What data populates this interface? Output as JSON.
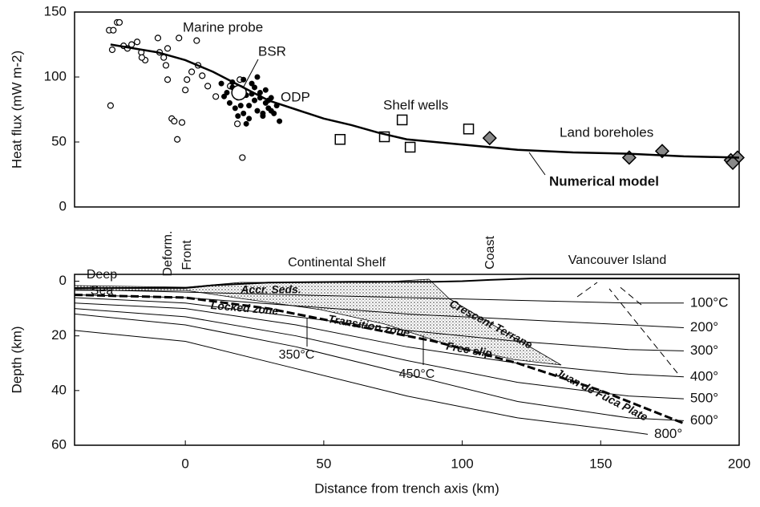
{
  "chart_data": [
    {
      "type": "scatter",
      "ylabel": "Heat flux (mW m-2)",
      "xlim": [
        -40,
        200
      ],
      "ylim": [
        0,
        150
      ],
      "yticks": [
        0,
        50,
        100,
        150
      ],
      "series": [
        {
          "name": "Marine probe",
          "marker": "circle",
          "color": "#000000",
          "x": [
            -27.5,
            -24.6,
            -23.8,
            -26,
            -26.4,
            -27,
            -22.3,
            -20.9,
            -19.4,
            -17.4,
            -15.9,
            -14.5,
            -15.7,
            -9.9,
            -9.3,
            -7.8,
            -6.4,
            -7,
            -6.4,
            -4.9,
            -4,
            -2.9,
            -1.2,
            -2.3,
            0.6,
            0,
            2.3,
            4.1,
            4.6,
            6.1,
            8.1,
            18.8,
            19.7,
            20.6,
            16.2,
            11
          ],
          "values": [
            136,
            142,
            142,
            136,
            121,
            78,
            124,
            122,
            125,
            127,
            119,
            113,
            115,
            130,
            119,
            115,
            122,
            109,
            98,
            68,
            66,
            52,
            65,
            130,
            98,
            90,
            104,
            128,
            109,
            101,
            93,
            64,
            98,
            38,
            93,
            85
          ]
        },
        {
          "name": "BSR",
          "marker": "dot",
          "color": "#000000",
          "x": [
            15,
            16,
            17,
            18,
            19,
            20,
            21,
            22,
            23,
            24,
            25,
            26,
            27,
            28,
            29,
            30,
            31,
            32,
            33,
            34,
            17,
            19,
            21,
            23,
            25,
            27,
            29,
            31,
            22,
            26,
            24,
            20,
            28,
            30,
            13,
            14
          ],
          "values": [
            88,
            80,
            92,
            76,
            84,
            90,
            72,
            86,
            78,
            95,
            82,
            74,
            88,
            70,
            80,
            76,
            84,
            72,
            78,
            66,
            96,
            70,
            98,
            68,
            92,
            84,
            90,
            74,
            64,
            100,
            87,
            78,
            72,
            82,
            95,
            85
          ]
        },
        {
          "name": "ODP",
          "marker": "big",
          "color": "#000000",
          "x": [
            19.4
          ],
          "values": [
            88
          ]
        },
        {
          "name": "Shelf wells",
          "marker": "square",
          "color": "#000000",
          "x": [
            55.9,
            71.9,
            78.3,
            81.2,
            102.3
          ],
          "values": [
            52,
            54,
            67,
            46,
            60
          ]
        },
        {
          "name": "Land boreholes",
          "marker": "diamond",
          "color": "#000000",
          "x": [
            109.9,
            160.3,
            172.2,
            197,
            199.4,
            197.7
          ],
          "values": [
            53,
            38,
            43,
            36,
            38,
            34
          ]
        },
        {
          "name": "Numerical model",
          "marker": "line",
          "color": "#000000",
          "x": [
            -27,
            -10,
            0,
            10,
            20,
            30,
            40,
            50,
            60,
            70,
            80,
            100,
            120,
            140,
            160,
            180,
            200
          ],
          "values": [
            125,
            119,
            113,
            104,
            93,
            82,
            75,
            68,
            63,
            57,
            52,
            48,
            44,
            42,
            41,
            39,
            38
          ]
        }
      ]
    },
    {
      "type": "section",
      "xlabel": "Distance from trench axis (km)",
      "ylabel": "Depth (km)",
      "xlim": [
        -40,
        200
      ],
      "ylim": [
        60,
        -2.5
      ],
      "xticks": [
        0,
        50,
        100,
        150,
        200
      ],
      "yticks": [
        0,
        20,
        40,
        60
      ],
      "surface": {
        "x": [
          -40,
          0,
          10,
          30,
          60,
          90,
          100,
          110,
          125,
          150,
          200
        ],
        "values": [
          2.5,
          2.5,
          1.5,
          0.5,
          0.2,
          0.2,
          0,
          -0.5,
          -1,
          -1,
          -1
        ]
      },
      "slab": {
        "x": [
          -40,
          0,
          30,
          60,
          90,
          120,
          150,
          180
        ],
        "values": [
          5,
          6,
          10,
          16,
          22,
          30,
          40,
          52
        ]
      },
      "series": [
        {
          "name": "100°C",
          "x": [
            -40,
            0,
            40,
            80,
            120,
            160,
            180
          ],
          "values": [
            3,
            4,
            5,
            6,
            7,
            8,
            8
          ]
        },
        {
          "name": "200°",
          "x": [
            -40,
            0,
            40,
            80,
            120,
            160,
            180
          ],
          "values": [
            5,
            6,
            9,
            12,
            14,
            16,
            17
          ]
        },
        {
          "name": "300°",
          "x": [
            -40,
            0,
            40,
            80,
            120,
            160,
            180
          ],
          "values": [
            6,
            8,
            13,
            18,
            22,
            25,
            25.5
          ]
        },
        {
          "name": "400°",
          "x": [
            -40,
            0,
            40,
            80,
            120,
            160,
            180
          ],
          "values": [
            8,
            10,
            16,
            24,
            30,
            34,
            35
          ]
        },
        {
          "name": "500°",
          "x": [
            -40,
            0,
            40,
            80,
            120,
            160,
            180
          ],
          "values": [
            10,
            13,
            20,
            29,
            37,
            42,
            43
          ]
        },
        {
          "name": "600°",
          "x": [
            -40,
            0,
            40,
            80,
            120,
            160,
            180
          ],
          "values": [
            12,
            16,
            24,
            34,
            44,
            50,
            51
          ]
        },
        {
          "name": "800°",
          "x": [
            -40,
            0,
            40,
            80,
            120,
            160,
            167
          ],
          "values": [
            18,
            22,
            32,
            42,
            50,
            55,
            56
          ]
        }
      ],
      "annotations": [
        "Deep",
        "Sea",
        "Deform.",
        "Front",
        "Continental Shelf",
        "Coast",
        "Vancouver Island",
        "Accr. Seds.",
        "Crescent Terrane",
        "Locked zone",
        "Transition zone",
        "Free slip",
        "Juan de Fuca Plate",
        "350°C",
        "450°C"
      ]
    }
  ]
}
